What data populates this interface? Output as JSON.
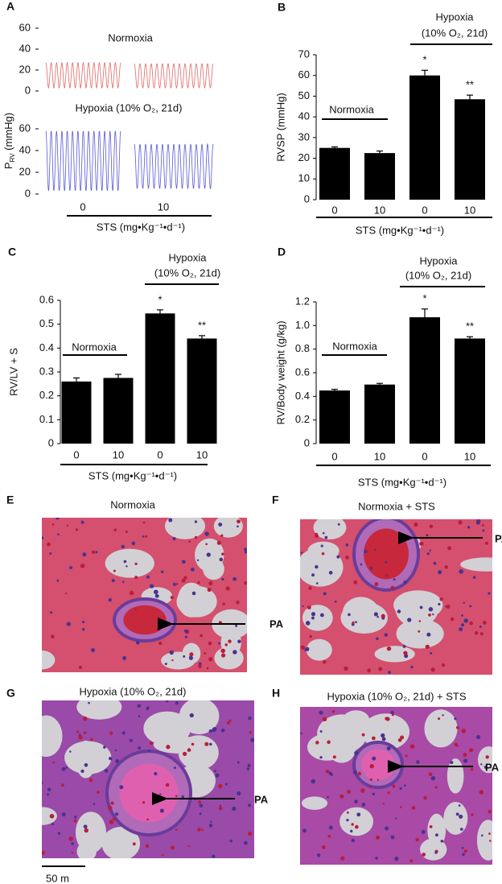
{
  "chart_data": [
    {
      "type": "trace",
      "letter": "A",
      "ylabel": [
        "P",
        "RV",
        " (mmHg)"
      ],
      "annotations": [
        "Normoxia",
        "Hypoxia (10% O₂, 21d)"
      ],
      "categories": [
        "0",
        "10"
      ],
      "xlabel": "STS (mg•Kg⁻¹•d⁻¹)",
      "panels": [
        {
          "ylim": [
            0,
            60
          ],
          "yticks": [
            0,
            20,
            40,
            60
          ],
          "series": [
            {
              "color": "#e06868",
              "values": [
                3,
                27
              ]
            },
            {
              "color": "#e06868",
              "values": [
                3,
                26
              ]
            }
          ]
        },
        {
          "ylim": [
            0,
            60
          ],
          "yticks": [
            0,
            20,
            40,
            60
          ],
          "series": [
            {
              "color": "#5a5ad8",
              "values": [
                3,
                58
              ]
            },
            {
              "color": "#5a5ad8",
              "values": [
                5,
                46
              ]
            }
          ]
        }
      ]
    },
    {
      "type": "bar",
      "letter": "B",
      "ylabel": "RVSP (mmHg)",
      "color": "#000000",
      "categories": [
        "0",
        "10",
        "0",
        "10"
      ],
      "values": [
        25,
        22.5,
        60,
        48.5
      ],
      "errors": [
        0.5,
        1,
        2.5,
        2
      ],
      "ylim": [
        0,
        70
      ],
      "yticks": [
        0,
        10,
        20,
        30,
        40,
        50,
        60,
        70
      ],
      "group_labels": {
        "normoxia": "Normoxia",
        "hypoxia": [
          "Hypoxia",
          "(10% O₂, 21d)"
        ]
      },
      "significance": [
        "*",
        "**"
      ],
      "xlabel": "STS (mg•Kg⁻¹•d⁻¹)"
    },
    {
      "type": "bar",
      "letter": "C",
      "ylabel": "RV/LV + S",
      "color": "#000000",
      "categories": [
        "0",
        "10",
        "0",
        "10"
      ],
      "values": [
        0.26,
        0.275,
        0.545,
        0.44
      ],
      "errors": [
        0.015,
        0.015,
        0.015,
        0.012
      ],
      "ylim": [
        0,
        0.6
      ],
      "yticks": [
        0,
        0.1,
        0.2,
        0.3,
        0.4,
        0.5,
        0.6
      ],
      "group_labels": {
        "normoxia": "Normoxia",
        "hypoxia": [
          "Hypoxia",
          "(10% O₂, 21d)"
        ]
      },
      "significance": [
        "*",
        "**"
      ],
      "xlabel": "STS (mg•Kg⁻¹•d⁻¹)"
    },
    {
      "type": "bar",
      "letter": "D",
      "ylabel": "RV/Body weight (g/kg)",
      "color": "#000000",
      "categories": [
        "0",
        "10",
        "0",
        "10"
      ],
      "values": [
        0.45,
        0.5,
        1.07,
        0.89
      ],
      "errors": [
        0.01,
        0.01,
        0.07,
        0.015
      ],
      "ylim": [
        0,
        1.2
      ],
      "yticks": [
        0,
        0.2,
        0.4,
        0.6,
        0.8,
        {
          "value": 1,
          "label": "1.0"
        },
        1.2
      ],
      "group_labels": {
        "normoxia": "Normoxia",
        "hypoxia": [
          "Hypoxia",
          "(10% O₂, 21d)"
        ]
      },
      "significance": [
        "*",
        "**"
      ],
      "xlabel": "STS (mg•Kg⁻¹•d⁻¹)"
    }
  ],
  "histology": [
    {
      "letter": "E",
      "title": "Normoxia",
      "marker": "PA"
    },
    {
      "letter": "F",
      "title": "Normoxia + STS",
      "marker": "PA"
    },
    {
      "letter": "G",
      "title": "Hypoxia  (10% O₂, 21d)",
      "marker": "PA"
    },
    {
      "letter": "H",
      "title": "Hypoxia  (10% O₂, 21d) + STS",
      "marker": "PA"
    }
  ],
  "scale_bar": "50   m"
}
